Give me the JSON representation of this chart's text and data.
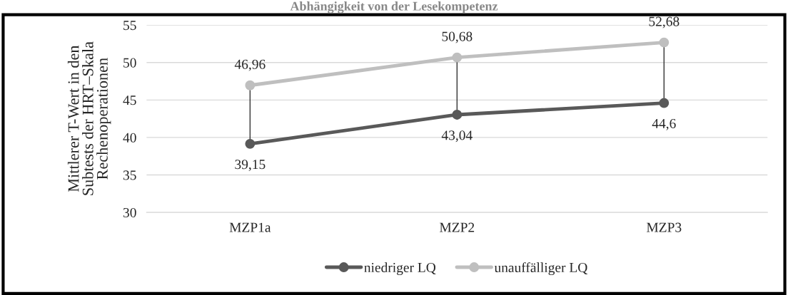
{
  "chart_data": {
    "type": "line",
    "title": "Abhängigkeit von der Lesekompetenz",
    "ylabel": "Mittlerer T-Wert in den\nSubtests der HRT–Skala\nRechenoperationen",
    "categories": [
      "MZP1a",
      "MZP2",
      "MZP3"
    ],
    "series": [
      {
        "name": "niedriger LQ",
        "color": "#595959",
        "values": [
          39.15,
          43.04,
          44.6
        ],
        "value_labels": [
          "39,15",
          "43,04",
          "44,6"
        ]
      },
      {
        "name": "unauffälliger LQ",
        "color": "#bfbfbf",
        "values": [
          46.96,
          50.68,
          52.68
        ],
        "value_labels": [
          "46,96",
          "50,68",
          "52,68"
        ]
      }
    ],
    "ylim": [
      30,
      55
    ],
    "yticks": [
      30,
      35,
      40,
      45,
      50,
      55
    ],
    "grid": "y",
    "legend": "bottom",
    "marker": "circle",
    "line_style": "solid"
  }
}
